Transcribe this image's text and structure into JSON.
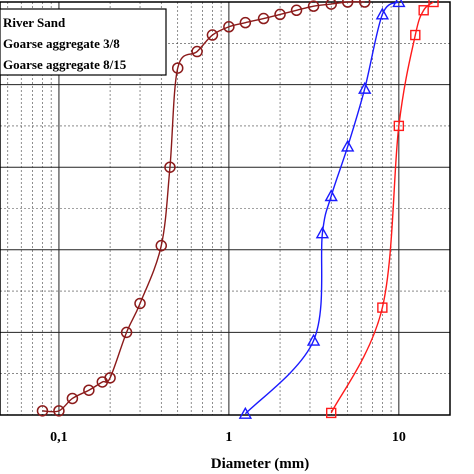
{
  "chart_data": {
    "type": "line",
    "xlabel": "Diameter (mm)",
    "x_scale": "log",
    "xlim": [
      0.045,
      20
    ],
    "ylim": [
      0,
      100
    ],
    "x_tick_labels": [
      {
        "value": 0.1,
        "label": "0,1"
      },
      {
        "value": 1,
        "label": "1"
      },
      {
        "value": 10,
        "label": "10"
      }
    ],
    "grid": true,
    "legend_position": "top-left",
    "series": [
      {
        "name": "River Sand",
        "color": "#8B1A1A",
        "marker": "circle",
        "x": [
          0.08,
          0.1,
          0.12,
          0.15,
          0.18,
          0.2,
          0.25,
          0.3,
          0.4,
          0.45,
          0.5,
          0.65,
          0.8,
          1.0,
          1.25,
          1.6,
          2.0,
          2.5,
          3.15,
          4.0,
          5.0,
          6.3
        ],
        "y": [
          1,
          1,
          4,
          6,
          8,
          9,
          20,
          27,
          41,
          60,
          84,
          88,
          92,
          94,
          95,
          96,
          97,
          98,
          99,
          99.5,
          100,
          100
        ]
      },
      {
        "name": "Goarse aggregate 3/8",
        "color": "#1a1aff",
        "marker": "triangle",
        "x": [
          1.25,
          3.15,
          3.55,
          4.0,
          5.0,
          6.3,
          8.0,
          10.0
        ],
        "y": [
          0.3,
          18,
          44,
          53,
          65,
          79,
          97,
          100
        ]
      },
      {
        "name": "Goarse aggregate 8/15",
        "color": "#ff1a1a",
        "marker": "square",
        "x": [
          4.0,
          8.0,
          10.0,
          12.5,
          14.0,
          16.0
        ],
        "y": [
          0.5,
          26,
          70,
          92,
          98,
          100
        ]
      }
    ]
  }
}
